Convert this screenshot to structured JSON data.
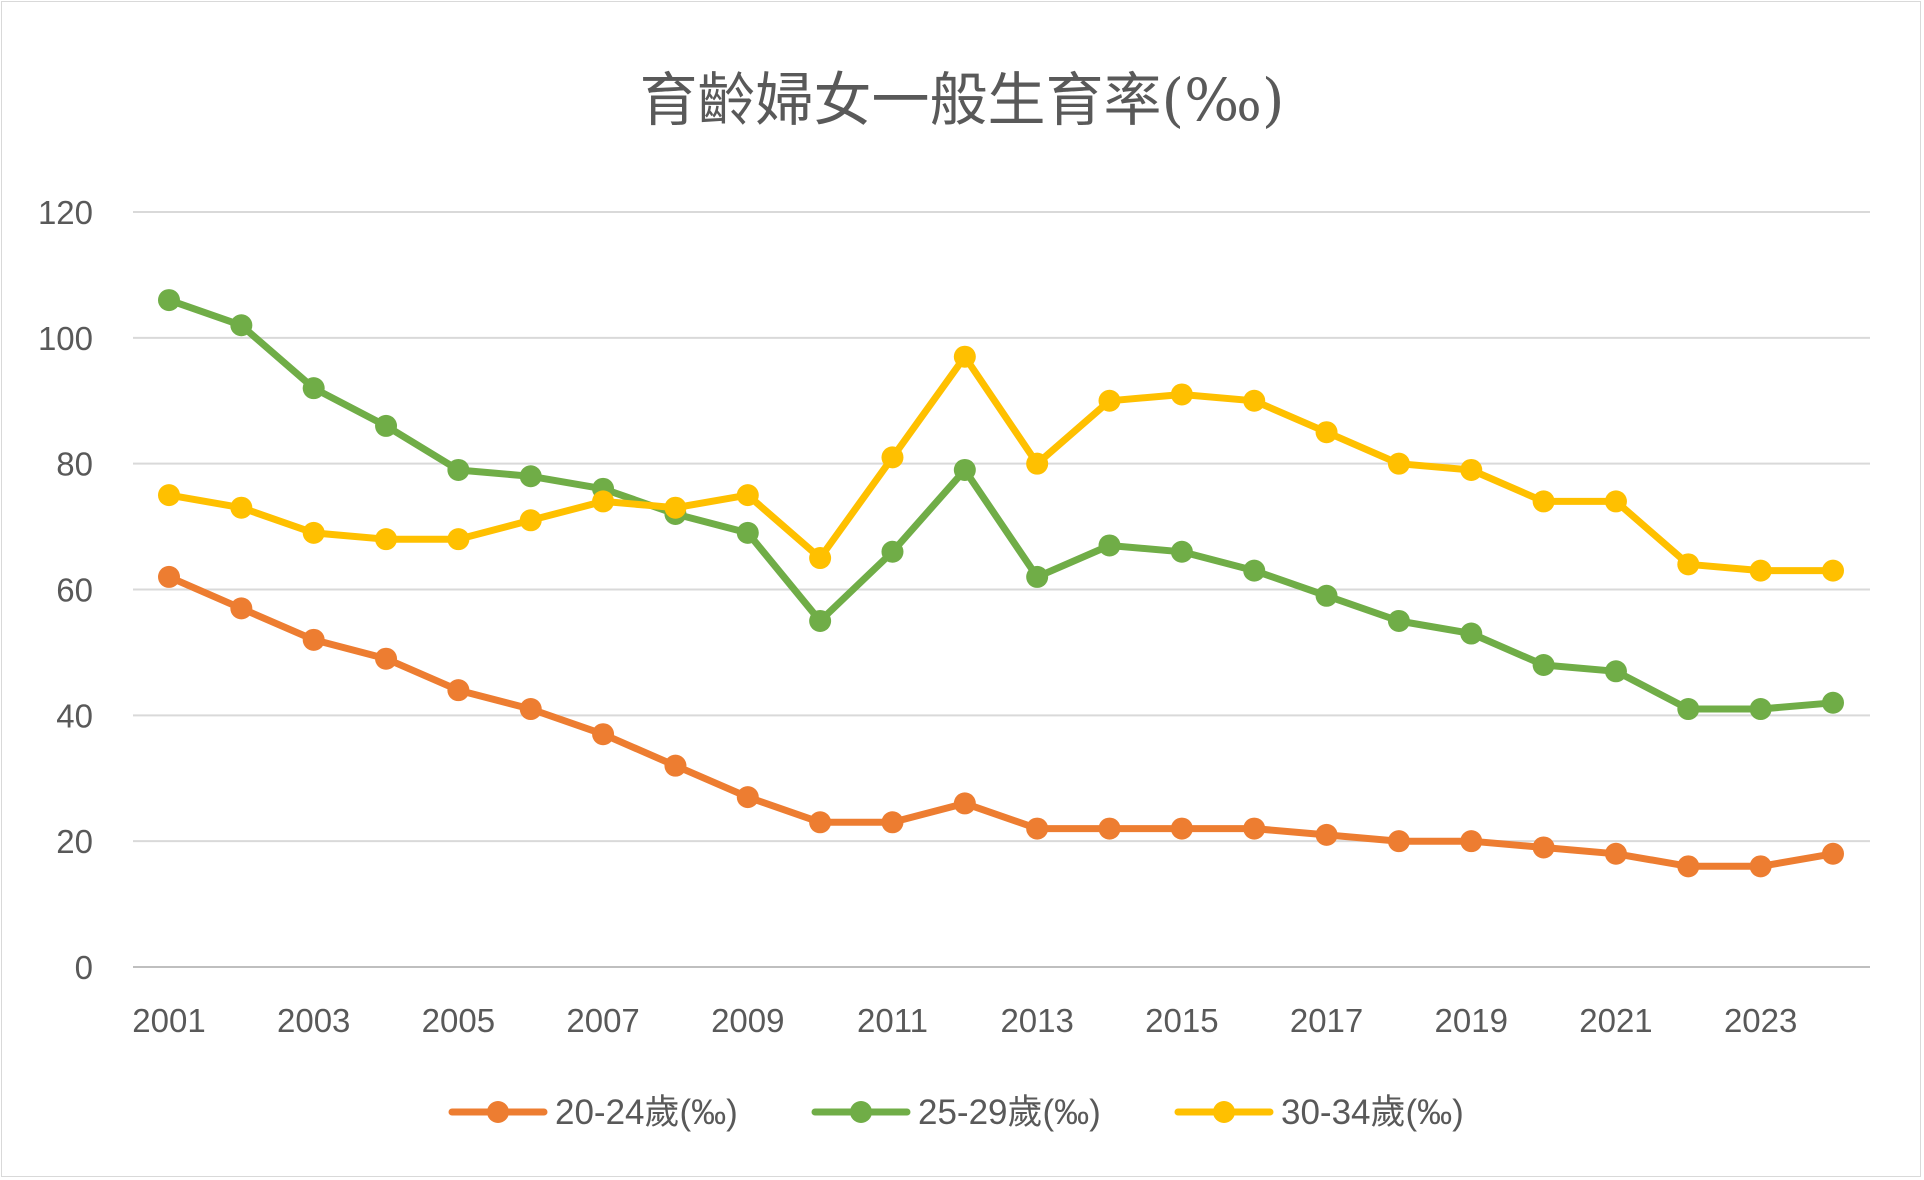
{
  "chart_data": {
    "type": "line",
    "title": "育齡婦女一般生育率(‰)",
    "xlabel": "",
    "ylabel": "",
    "ylim": [
      0,
      120
    ],
    "yticks": [
      0,
      20,
      40,
      60,
      80,
      100,
      120
    ],
    "grid": true,
    "legend_position": "bottom",
    "x": [
      2001,
      2002,
      2003,
      2004,
      2005,
      2006,
      2007,
      2008,
      2009,
      2010,
      2011,
      2012,
      2013,
      2014,
      2015,
      2016,
      2017,
      2018,
      2019,
      2020,
      2021,
      2022,
      2023,
      2024
    ],
    "x_tick_labels": [
      "2001",
      "2003",
      "2005",
      "2007",
      "2009",
      "2011",
      "2013",
      "2015",
      "2017",
      "2019",
      "2021",
      "2023"
    ],
    "series": [
      {
        "name": "20-24歲(‰)",
        "color": "#ED7D31",
        "values": [
          62,
          57,
          52,
          49,
          44,
          41,
          37,
          32,
          27,
          23,
          23,
          26,
          22,
          22,
          22,
          22,
          21,
          20,
          20,
          19,
          18,
          16,
          16,
          18
        ]
      },
      {
        "name": "25-29歲(‰)",
        "color": "#70AD47",
        "values": [
          106,
          102,
          92,
          86,
          79,
          78,
          76,
          72,
          69,
          55,
          66,
          79,
          62,
          67,
          66,
          63,
          59,
          55,
          53,
          48,
          47,
          41,
          41,
          42
        ]
      },
      {
        "name": "30-34歲(‰)",
        "color": "#FFC000",
        "values": [
          75,
          73,
          69,
          68,
          68,
          71,
          74,
          73,
          75,
          65,
          81,
          97,
          80,
          90,
          91,
          90,
          85,
          80,
          79,
          74,
          74,
          64,
          63,
          63
        ]
      }
    ]
  }
}
